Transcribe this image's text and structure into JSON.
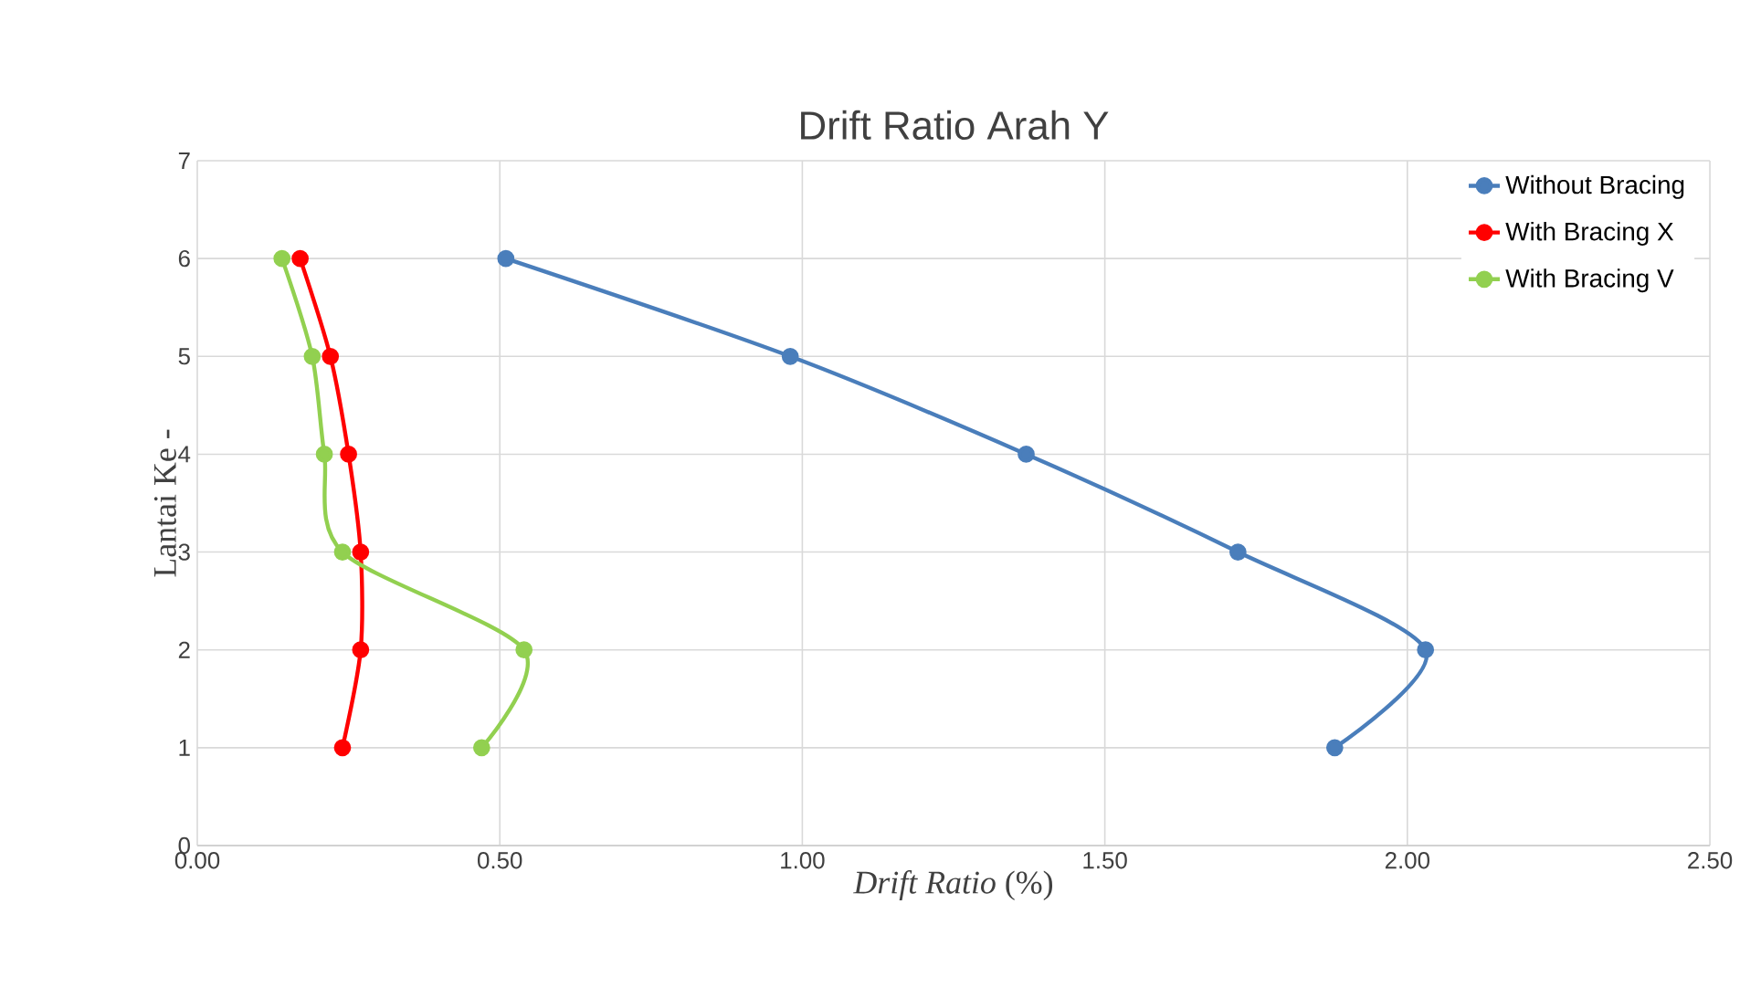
{
  "chart_data": {
    "type": "line",
    "title": "Drift Ratio Arah Y",
    "xlabel": "*Drift Ratio* (%)",
    "ylabel": "Lantai Ke -",
    "series": [
      {
        "name": "Without Bracing",
        "color": "#4a7ebb",
        "x": [
          0.51,
          0.98,
          1.37,
          1.72,
          2.03,
          1.88
        ],
        "values": [
          6,
          5,
          4,
          3,
          2,
          1
        ]
      },
      {
        "name": "With Bracing X",
        "color": "#ff0000",
        "x": [
          0.17,
          0.22,
          0.25,
          0.27,
          0.27,
          0.24
        ],
        "values": [
          6,
          5,
          4,
          3,
          2,
          1
        ]
      },
      {
        "name": "With Bracing V",
        "color": "#92d050",
        "x": [
          0.14,
          0.19,
          0.21,
          0.24,
          0.54,
          0.47
        ],
        "values": [
          6,
          5,
          4,
          3,
          2,
          1
        ]
      }
    ],
    "xlim": [
      0,
      2.5
    ],
    "ylim": [
      0,
      7
    ],
    "xticks": [
      {
        "value": 0,
        "label": "0.00"
      },
      {
        "value": 0.5,
        "label": "0.50"
      },
      {
        "value": 1,
        "label": "1.00"
      },
      {
        "value": 1.5,
        "label": "1.50"
      },
      {
        "value": 2,
        "label": "2.00"
      },
      {
        "value": 2.5,
        "label": "2.50"
      }
    ],
    "yticks": [
      0,
      1,
      2,
      3,
      4,
      5,
      6,
      7
    ],
    "grid": true,
    "legend": "top right",
    "marker": "circle",
    "line_style": "solid"
  }
}
